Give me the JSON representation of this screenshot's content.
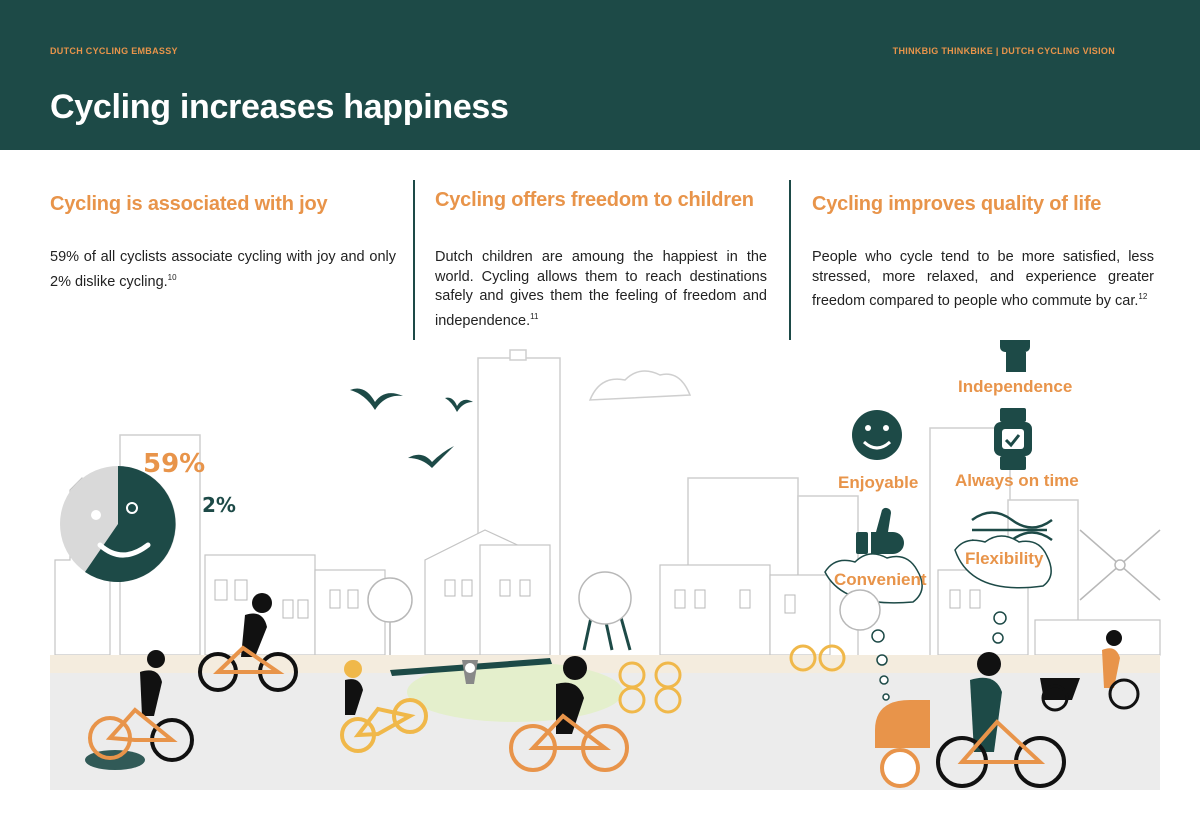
{
  "header": {
    "org": "DUTCH CYCLING EMBASSY",
    "series": "THINKBIG THINKBIKE | DUTCH CYCLING VISION",
    "title": "Cycling increases happiness"
  },
  "columns": [
    {
      "heading": "Cycling is associated with joy",
      "body": "59% of all cyclists associate cycling with joy and only 2% dislike cycling.",
      "ref": "10"
    },
    {
      "heading": "Cycling offers freedom to children",
      "body": "Dutch children are amoung the happiest in the world. Cycling allows them to reach destinations safely and gives them the feeling of freedom and independence.",
      "ref": "11"
    },
    {
      "heading": "Cycling improves quality of life",
      "body": "People who cycle tend to be more satisfied, less stressed, more relaxed, and experience greater freedom compared to people who commute by car.",
      "ref": "12"
    }
  ],
  "stats": {
    "joy_pct": "59%",
    "dislike_pct": "2%",
    "joy_fraction": 0.59
  },
  "benefits": {
    "independence": "Independence",
    "enjoyable": "Enjoyable",
    "on_time": "Always on time",
    "convenient": "Convenient",
    "flexibility": "Flexibility"
  },
  "colors": {
    "teal": "#1d4a47",
    "orange": "#e8944a",
    "yellow": "#f0b84a",
    "gray": "#d9d9d9",
    "park": "#e4efcc"
  }
}
